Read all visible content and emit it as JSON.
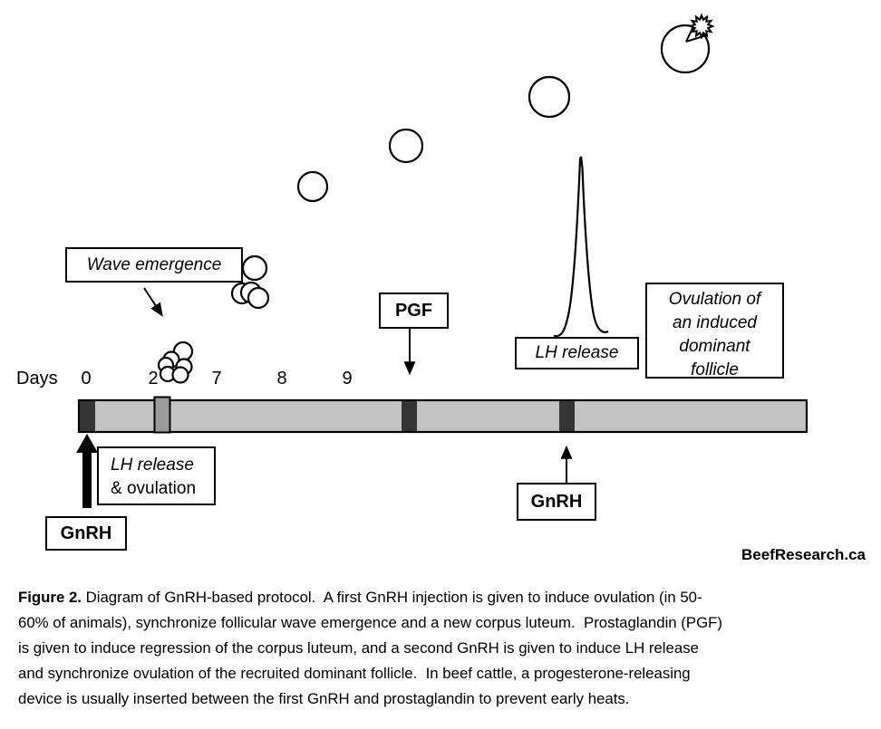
{
  "figure": {
    "days_axis": {
      "label": "Days",
      "ticks": [
        "0",
        "2",
        "7",
        "8",
        "9"
      ]
    },
    "wave_emergence_label": "Wave emergence",
    "pgf_label": "PGF",
    "lh_release_label": "LH release",
    "ovulation_box_lines": [
      "Ovulation of",
      "an induced",
      "dominant",
      "follicle"
    ],
    "lh_ovulation_box_lines": [
      "LH release",
      "& ovulation"
    ],
    "gnrh_first_label": "GnRH",
    "gnrh_second_label": "GnRH",
    "credit": "BeefResearch.ca",
    "colors": {
      "bar_fill": "#c3c3c3",
      "segment_dark": "#353535",
      "segment_gray": "#9b9b9b",
      "ink": "#000000"
    }
  },
  "caption": {
    "figure_label": "Figure 2.",
    "line1_rest": " Diagram of GnRH-based protocol.  A first GnRH injection is given to induce ovulation (in 50-",
    "lines_rest": [
      "60% of animals), synchronize follicular wave emergence and a new corpus luteum.  Prostaglandin (PGF)",
      "is given to induce regression of the corpus luteum, and a second GnRH is given to induce LH release",
      "and synchronize ovulation of the recruited dominant follicle.  In beef cattle, a progesterone-releasing",
      "device is usually inserted between the first GnRH and prostaglandin to prevent early heats."
    ]
  }
}
